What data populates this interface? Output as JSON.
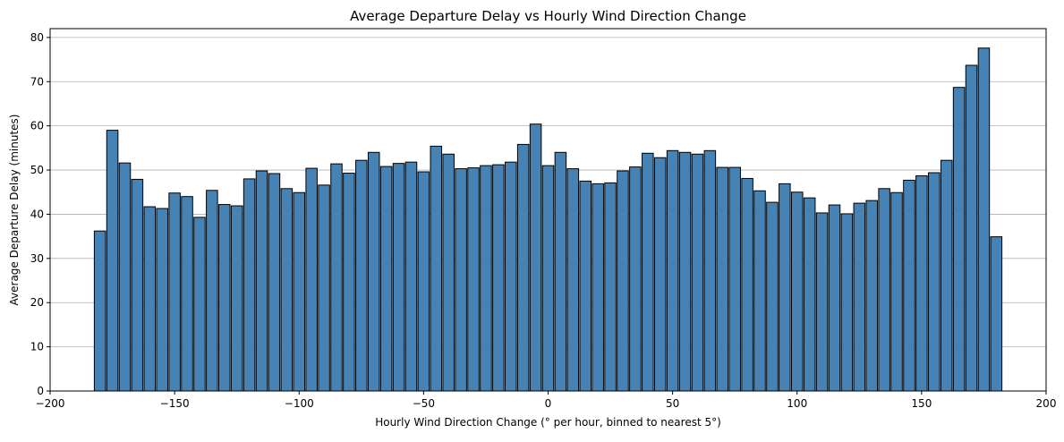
{
  "chart_data": {
    "type": "bar",
    "title": "Average Departure Delay vs Hourly Wind Direction Change",
    "xlabel": "Hourly Wind Direction Change (° per hour, binned to nearest 5°)",
    "ylabel": "Average Departure Delay (minutes)",
    "xlim": [
      -200,
      200
    ],
    "ylim": [
      0,
      82
    ],
    "xticks": [
      -200,
      -150,
      -100,
      -50,
      0,
      50,
      100,
      150,
      200
    ],
    "xtick_labels": [
      "−200",
      "−150",
      "−100",
      "−50",
      "0",
      "50",
      "100",
      "150",
      "200"
    ],
    "yticks": [
      0,
      10,
      20,
      30,
      40,
      50,
      60,
      70,
      80
    ],
    "ytick_labels": [
      "0",
      "10",
      "20",
      "30",
      "40",
      "50",
      "60",
      "70",
      "80"
    ],
    "bin_width": 5,
    "bar_color": "#4682b4",
    "edge_color": "#000000",
    "grid": "y",
    "grid_color": "#b0b0b0",
    "x": [
      -180,
      -175,
      -170,
      -165,
      -160,
      -155,
      -150,
      -145,
      -140,
      -135,
      -130,
      -125,
      -120,
      -115,
      -110,
      -105,
      -100,
      -95,
      -90,
      -85,
      -80,
      -75,
      -70,
      -65,
      -60,
      -55,
      -50,
      -45,
      -40,
      -35,
      -30,
      -25,
      -20,
      -15,
      -10,
      -5,
      0,
      5,
      10,
      15,
      20,
      25,
      30,
      35,
      40,
      45,
      50,
      55,
      60,
      65,
      70,
      75,
      80,
      85,
      90,
      95,
      100,
      105,
      110,
      115,
      120,
      125,
      130,
      135,
      140,
      145,
      150,
      155,
      160,
      165,
      170,
      175,
      180
    ],
    "values": [
      36.2,
      59.0,
      51.6,
      47.9,
      41.7,
      41.3,
      44.8,
      44.0,
      39.3,
      45.4,
      42.2,
      41.9,
      48.0,
      49.8,
      49.2,
      45.8,
      44.9,
      50.4,
      46.6,
      51.4,
      49.3,
      52.2,
      54.0,
      50.8,
      51.5,
      51.8,
      49.6,
      55.4,
      53.6,
      50.3,
      50.5,
      51.0,
      51.2,
      51.8,
      55.8,
      60.4,
      51.0,
      54.0,
      50.3,
      47.5,
      46.9,
      47.1,
      49.8,
      50.7,
      53.8,
      52.8,
      54.4,
      54.0,
      53.6,
      54.4,
      50.6,
      50.6,
      48.1,
      45.3,
      42.7,
      46.9,
      45.0,
      43.7,
      40.3,
      42.1,
      40.1,
      42.5,
      43.1,
      45.8,
      44.9,
      47.7,
      48.7,
      49.4,
      52.2,
      68.7,
      73.7,
      77.6,
      34.9
    ]
  }
}
